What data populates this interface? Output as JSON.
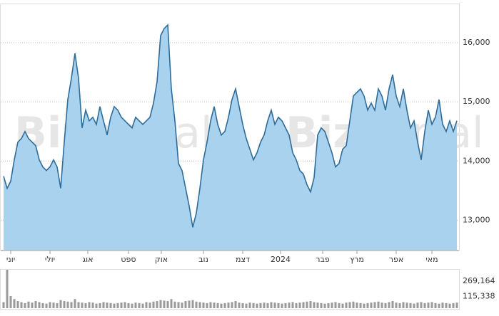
{
  "chart_data": {
    "type": "area",
    "watermark_bold": "Biz",
    "watermark_light": "portal",
    "line_color": "#2e6c9a",
    "fill_color": "#a9d2ef",
    "values": [
      13744,
      13540,
      13660,
      14020,
      14320,
      14380,
      14500,
      14380,
      14320,
      14260,
      14020,
      13900,
      13840,
      13900,
      14020,
      13900,
      13540,
      14320,
      15040,
      15400,
      15820,
      15400,
      14560,
      14860,
      14680,
      14740,
      14620,
      14920,
      14680,
      14440,
      14740,
      14920,
      14860,
      14740,
      14680,
      14620,
      14560,
      14740,
      14680,
      14620,
      14680,
      14740,
      14980,
      15340,
      16120,
      16240,
      16300,
      15220,
      14680,
      13960,
      13840,
      13540,
      13240,
      12880,
      13120,
      13540,
      14020,
      14320,
      14680,
      14920,
      14620,
      14440,
      14500,
      14740,
      15040,
      15220,
      14920,
      14620,
      14380,
      14200,
      14020,
      14140,
      14320,
      14440,
      14680,
      14860,
      14620,
      14740,
      14680,
      14560,
      14440,
      14140,
      14020,
      13840,
      13780,
      13600,
      13480,
      13720,
      14440,
      14560,
      14500,
      14320,
      14140,
      13900,
      13960,
      14200,
      14260,
      14680,
      15100,
      15160,
      15220,
      15100,
      14860,
      14980,
      14860,
      15220,
      15100,
      14860,
      15220,
      15460,
      15100,
      14920,
      15220,
      14860,
      14560,
      14680,
      14320,
      14020,
      14500,
      14860,
      14620,
      14740,
      15040,
      14620,
      14500,
      14680,
      14500,
      14680
    ],
    "xlim": [
      0,
      127
    ],
    "xticks": [
      {
        "value": 2,
        "label": "יוני"
      },
      {
        "value": 13,
        "label": "יולי"
      },
      {
        "value": 23.6,
        "label": "אוג"
      },
      {
        "value": 35,
        "label": "ספט"
      },
      {
        "value": 44.2,
        "label": "אוק"
      },
      {
        "value": 56,
        "label": "נוב"
      },
      {
        "value": 67,
        "label": "דצמ"
      },
      {
        "value": 77.6,
        "label": "2024"
      },
      {
        "value": 89.4,
        "label": "פבר"
      },
      {
        "value": 99,
        "label": "מרץ"
      },
      {
        "value": 110,
        "label": "אפר"
      },
      {
        "value": 120,
        "label": "מאי"
      }
    ],
    "ylim": [
      12500,
      16650
    ],
    "yticks": [
      {
        "value": 13000,
        "label": "13,000"
      },
      {
        "value": 14000,
        "label": "14,000"
      },
      {
        "value": 15000,
        "label": "15,000"
      },
      {
        "value": 16000,
        "label": "16,000"
      }
    ],
    "grid": true,
    "volume": {
      "color": "#9a9a9a",
      "values": [
        60000,
        380000,
        120000,
        90000,
        70000,
        60000,
        50000,
        65000,
        55000,
        70000,
        60000,
        50000,
        45000,
        60000,
        55000,
        50000,
        80000,
        70000,
        65000,
        60000,
        90000,
        60000,
        55000,
        50000,
        60000,
        55000,
        45000,
        50000,
        60000,
        55000,
        50000,
        45000,
        50000,
        55000,
        60000,
        50000,
        45000,
        55000,
        50000,
        45000,
        60000,
        55000,
        65000,
        70000,
        80000,
        75000,
        70000,
        90000,
        65000,
        60000,
        55000,
        70000,
        75000,
        80000,
        65000,
        60000,
        55000,
        50000,
        60000,
        55000,
        50000,
        45000,
        50000,
        55000,
        60000,
        70000,
        55000,
        50000,
        45000,
        55000,
        50000,
        45000,
        50000,
        55000,
        50000,
        60000,
        55000,
        50000,
        45000,
        50000,
        55000,
        60000,
        50000,
        55000,
        60000,
        65000,
        70000,
        60000,
        55000,
        50000,
        45000,
        50000,
        55000,
        60000,
        50000,
        45000,
        55000,
        60000,
        65000,
        55000,
        50000,
        45000,
        50000,
        55000,
        60000,
        65000,
        55000,
        50000,
        60000,
        70000,
        55000,
        50000,
        60000,
        55000,
        50000,
        45000,
        55000,
        60000,
        50000,
        55000,
        60000,
        50000,
        45000,
        55000,
        50000,
        45000,
        50000,
        55000
      ],
      "ylim": [
        0,
        380000
      ],
      "yticks": [
        {
          "value": 115338,
          "label": "115,338"
        },
        {
          "value": 269164,
          "label": "269,164"
        }
      ]
    }
  }
}
